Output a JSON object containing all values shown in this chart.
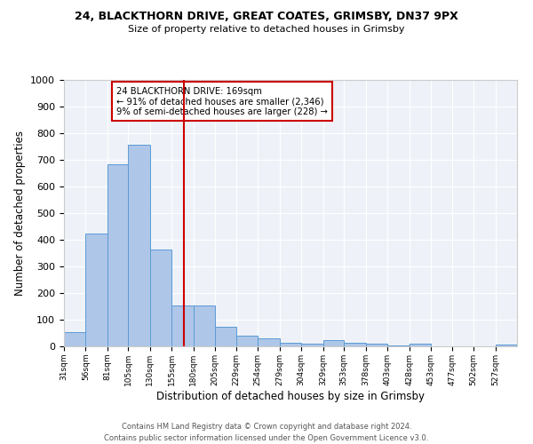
{
  "title1": "24, BLACKTHORN DRIVE, GREAT COATES, GRIMSBY, DN37 9PX",
  "title2": "Size of property relative to detached houses in Grimsby",
  "xlabel": "Distribution of detached houses by size in Grimsby",
  "ylabel": "Number of detached properties",
  "bin_labels": [
    "31sqm",
    "56sqm",
    "81sqm",
    "105sqm",
    "130sqm",
    "155sqm",
    "180sqm",
    "205sqm",
    "229sqm",
    "254sqm",
    "279sqm",
    "304sqm",
    "329sqm",
    "353sqm",
    "378sqm",
    "403sqm",
    "428sqm",
    "453sqm",
    "477sqm",
    "502sqm",
    "527sqm"
  ],
  "bin_edges": [
    31,
    56,
    81,
    105,
    130,
    155,
    180,
    205,
    229,
    254,
    279,
    304,
    329,
    353,
    378,
    403,
    428,
    453,
    477,
    502,
    527,
    552
  ],
  "bar_heights": [
    52,
    425,
    685,
    758,
    363,
    155,
    155,
    72,
    40,
    30,
    15,
    10,
    25,
    15,
    10,
    5,
    10,
    0,
    0,
    0,
    8
  ],
  "bar_color": "#aec6e8",
  "bar_edge_color": "#5b9bd5",
  "vline_x": 169,
  "vline_color": "#cc0000",
  "annotation_title": "24 BLACKTHORN DRIVE: 169sqm",
  "annotation_line1": "← 91% of detached houses are smaller (2,346)",
  "annotation_line2": "9% of semi-detached houses are larger (228) →",
  "annotation_box_color": "#cc0000",
  "ylim": [
    0,
    1000
  ],
  "yticks": [
    0,
    100,
    200,
    300,
    400,
    500,
    600,
    700,
    800,
    900,
    1000
  ],
  "bg_color": "#eef2f8",
  "footer1": "Contains HM Land Registry data © Crown copyright and database right 2024.",
  "footer2": "Contains public sector information licensed under the Open Government Licence v3.0."
}
